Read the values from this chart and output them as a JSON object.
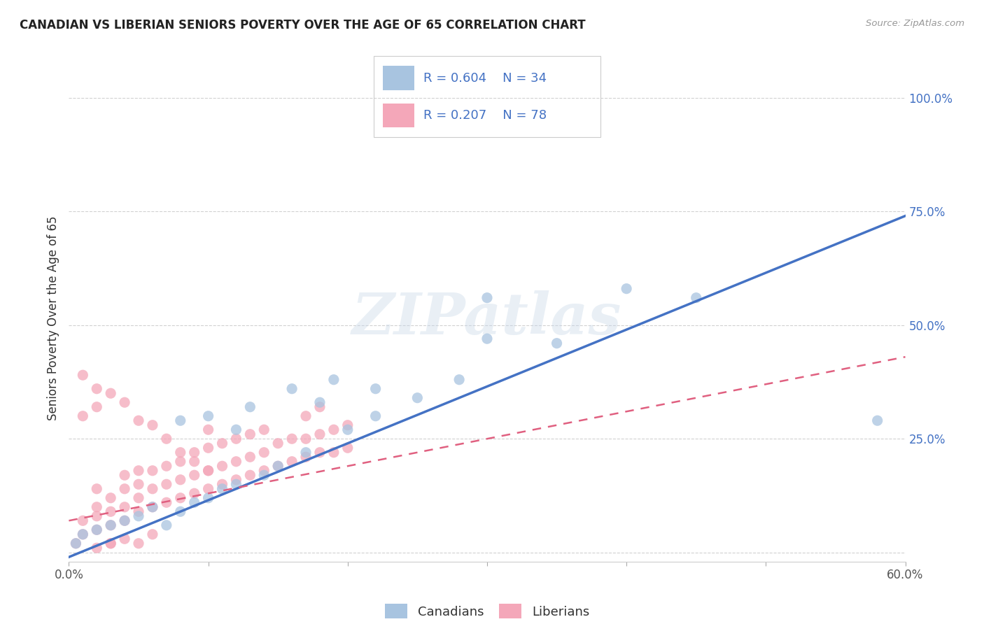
{
  "title": "CANADIAN VS LIBERIAN SENIORS POVERTY OVER THE AGE OF 65 CORRELATION CHART",
  "source": "Source: ZipAtlas.com",
  "ylabel": "Seniors Poverty Over the Age of 65",
  "xlim": [
    0.0,
    0.6
  ],
  "ylim": [
    -0.02,
    1.05
  ],
  "yticks": [
    0.0,
    0.25,
    0.5,
    0.75,
    1.0
  ],
  "ytick_labels": [
    "",
    "25.0%",
    "50.0%",
    "75.0%",
    "100.0%"
  ],
  "xticks": [
    0.0,
    0.1,
    0.2,
    0.3,
    0.4,
    0.5,
    0.6
  ],
  "xtick_labels": [
    "0.0%",
    "",
    "",
    "",
    "",
    "",
    "60.0%"
  ],
  "canadian_color": "#a8c4e0",
  "liberian_color": "#f4a7b9",
  "trend_canadian_color": "#4472c4",
  "trend_liberian_color": "#e06080",
  "R_canadian": 0.604,
  "N_canadian": 34,
  "R_liberian": 0.207,
  "N_liberian": 78,
  "watermark": "ZIPatlas",
  "canadians_x": [
    0.005,
    0.01,
    0.02,
    0.03,
    0.04,
    0.05,
    0.06,
    0.07,
    0.08,
    0.09,
    0.1,
    0.11,
    0.12,
    0.14,
    0.15,
    0.17,
    0.2,
    0.22,
    0.25,
    0.28,
    0.1,
    0.13,
    0.16,
    0.19,
    0.22,
    0.3,
    0.35,
    0.3,
    0.58,
    0.45,
    0.4,
    0.08,
    0.12,
    0.18
  ],
  "canadians_y": [
    0.02,
    0.04,
    0.05,
    0.06,
    0.07,
    0.08,
    0.1,
    0.06,
    0.09,
    0.11,
    0.12,
    0.14,
    0.15,
    0.17,
    0.19,
    0.22,
    0.27,
    0.3,
    0.34,
    0.38,
    0.3,
    0.32,
    0.36,
    0.38,
    0.36,
    0.47,
    0.46,
    0.56,
    0.29,
    0.56,
    0.58,
    0.29,
    0.27,
    0.33
  ],
  "liberians_x": [
    0.005,
    0.01,
    0.01,
    0.02,
    0.02,
    0.02,
    0.02,
    0.03,
    0.03,
    0.03,
    0.04,
    0.04,
    0.04,
    0.04,
    0.05,
    0.05,
    0.05,
    0.05,
    0.06,
    0.06,
    0.06,
    0.07,
    0.07,
    0.07,
    0.08,
    0.08,
    0.08,
    0.09,
    0.09,
    0.09,
    0.1,
    0.1,
    0.1,
    0.1,
    0.11,
    0.11,
    0.11,
    0.12,
    0.12,
    0.12,
    0.13,
    0.13,
    0.13,
    0.14,
    0.14,
    0.14,
    0.15,
    0.15,
    0.16,
    0.16,
    0.17,
    0.17,
    0.17,
    0.18,
    0.18,
    0.18,
    0.19,
    0.19,
    0.2,
    0.2,
    0.01,
    0.02,
    0.03,
    0.04,
    0.05,
    0.06,
    0.07,
    0.08,
    0.09,
    0.1,
    0.01,
    0.02,
    0.03,
    0.02,
    0.03,
    0.04,
    0.05,
    0.06
  ],
  "liberians_y": [
    0.02,
    0.04,
    0.07,
    0.05,
    0.08,
    0.1,
    0.14,
    0.06,
    0.09,
    0.12,
    0.07,
    0.1,
    0.14,
    0.17,
    0.09,
    0.12,
    0.15,
    0.18,
    0.1,
    0.14,
    0.18,
    0.11,
    0.15,
    0.19,
    0.12,
    0.16,
    0.2,
    0.13,
    0.17,
    0.22,
    0.14,
    0.18,
    0.23,
    0.27,
    0.15,
    0.19,
    0.24,
    0.16,
    0.2,
    0.25,
    0.17,
    0.21,
    0.26,
    0.18,
    0.22,
    0.27,
    0.19,
    0.24,
    0.2,
    0.25,
    0.21,
    0.25,
    0.3,
    0.22,
    0.26,
    0.32,
    0.22,
    0.27,
    0.23,
    0.28,
    0.3,
    0.32,
    0.35,
    0.33,
    0.29,
    0.28,
    0.25,
    0.22,
    0.2,
    0.18,
    0.39,
    0.36,
    0.02,
    0.01,
    0.02,
    0.03,
    0.02,
    0.04
  ]
}
